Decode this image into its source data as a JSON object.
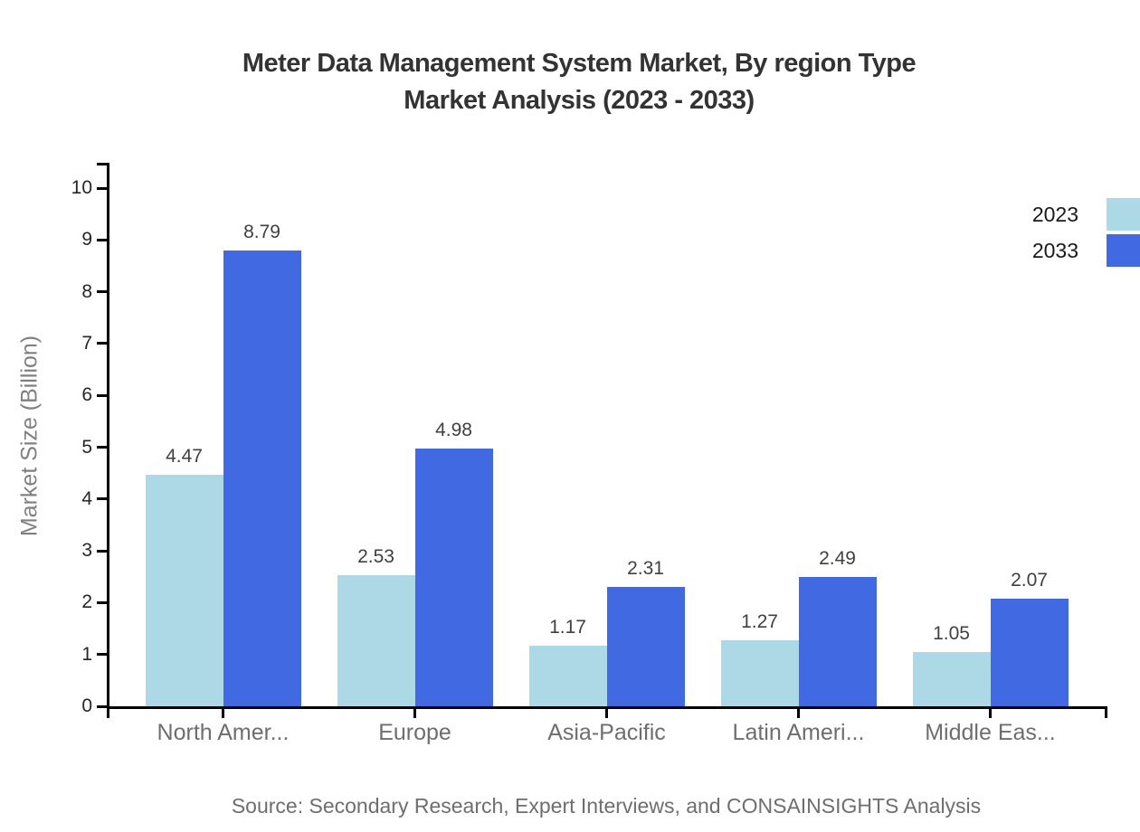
{
  "chart_data": {
    "type": "bar",
    "title": "Meter Data Management System Market, By region Type",
    "subtitle": "Market Analysis (2023 - 2033)",
    "categories": [
      "North Amer...",
      "Europe",
      "Asia-Pacific",
      "Latin Ameri...",
      "Middle Eas..."
    ],
    "series": [
      {
        "name": "2023",
        "color": "#ADD8E6",
        "values": [
          4.47,
          2.53,
          1.17,
          1.27,
          1.05
        ]
      },
      {
        "name": "2033",
        "color": "#4169E1",
        "values": [
          8.79,
          4.98,
          2.31,
          2.49,
          2.07
        ]
      }
    ],
    "value_label_decimals": 2,
    "xlabel": "",
    "ylabel": "Market Size (Billion)",
    "ylim": [
      0,
      10
    ],
    "ytick_step": 1,
    "grid": false,
    "legend_position": "top-right",
    "axis_color": "#000000",
    "source": "Source: Secondary Research, Expert Interviews, and CONSAINSIGHTS Analysis"
  }
}
